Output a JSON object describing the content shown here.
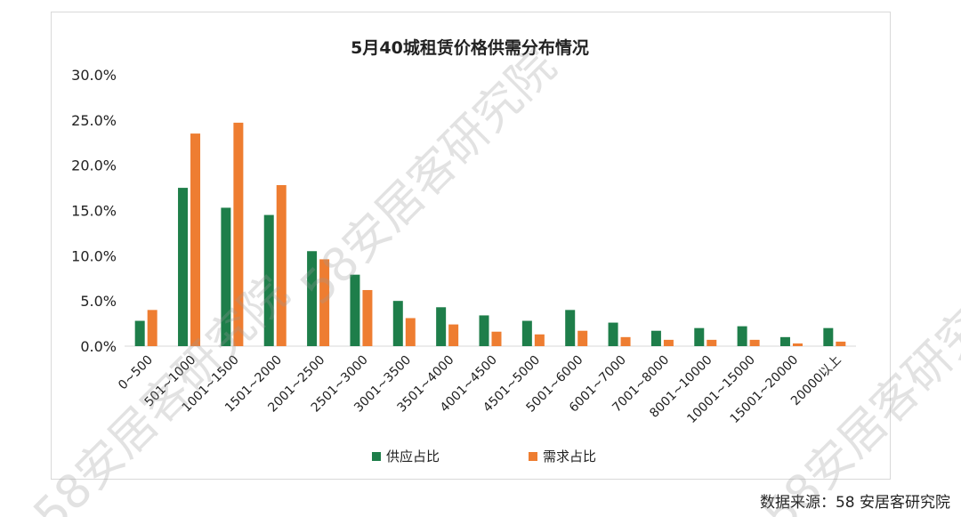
{
  "chart_data": {
    "type": "bar",
    "title": "5月40城租赁价格供需分布情况",
    "xlabel": "",
    "ylabel": "",
    "ylim": [
      0,
      30
    ],
    "yticks": [
      "0.0%",
      "5.0%",
      "10.0%",
      "15.0%",
      "20.0%",
      "25.0%",
      "30.0%"
    ],
    "ytick_values": [
      0,
      5,
      10,
      15,
      20,
      25,
      30
    ],
    "categories": [
      "0~500",
      "501~1000",
      "1001~1500",
      "1501~2000",
      "2001~2500",
      "2501~3000",
      "3001~3500",
      "3501~4000",
      "4001~4500",
      "4501~5000",
      "5001~6000",
      "6001~7000",
      "7001~8000",
      "8001~10000",
      "10001~15000",
      "15001~20000",
      "20000以上"
    ],
    "series": [
      {
        "name": "供应占比",
        "color": "#1e7e4a",
        "values": [
          2.8,
          17.5,
          15.3,
          14.5,
          10.5,
          7.9,
          5.0,
          4.3,
          3.4,
          2.8,
          4.0,
          2.6,
          1.7,
          2.0,
          2.2,
          1.0,
          2.0
        ]
      },
      {
        "name": "需求占比",
        "color": "#ee7d31",
        "values": [
          4.0,
          23.5,
          24.7,
          17.8,
          9.6,
          6.2,
          3.1,
          2.4,
          1.6,
          1.3,
          1.7,
          1.0,
          0.7,
          0.7,
          0.7,
          0.3,
          0.5
        ]
      }
    ],
    "legend": "bottom",
    "grid": false
  },
  "source": "数据来源：58 安居客研究院",
  "watermark": "58安居客研究院"
}
